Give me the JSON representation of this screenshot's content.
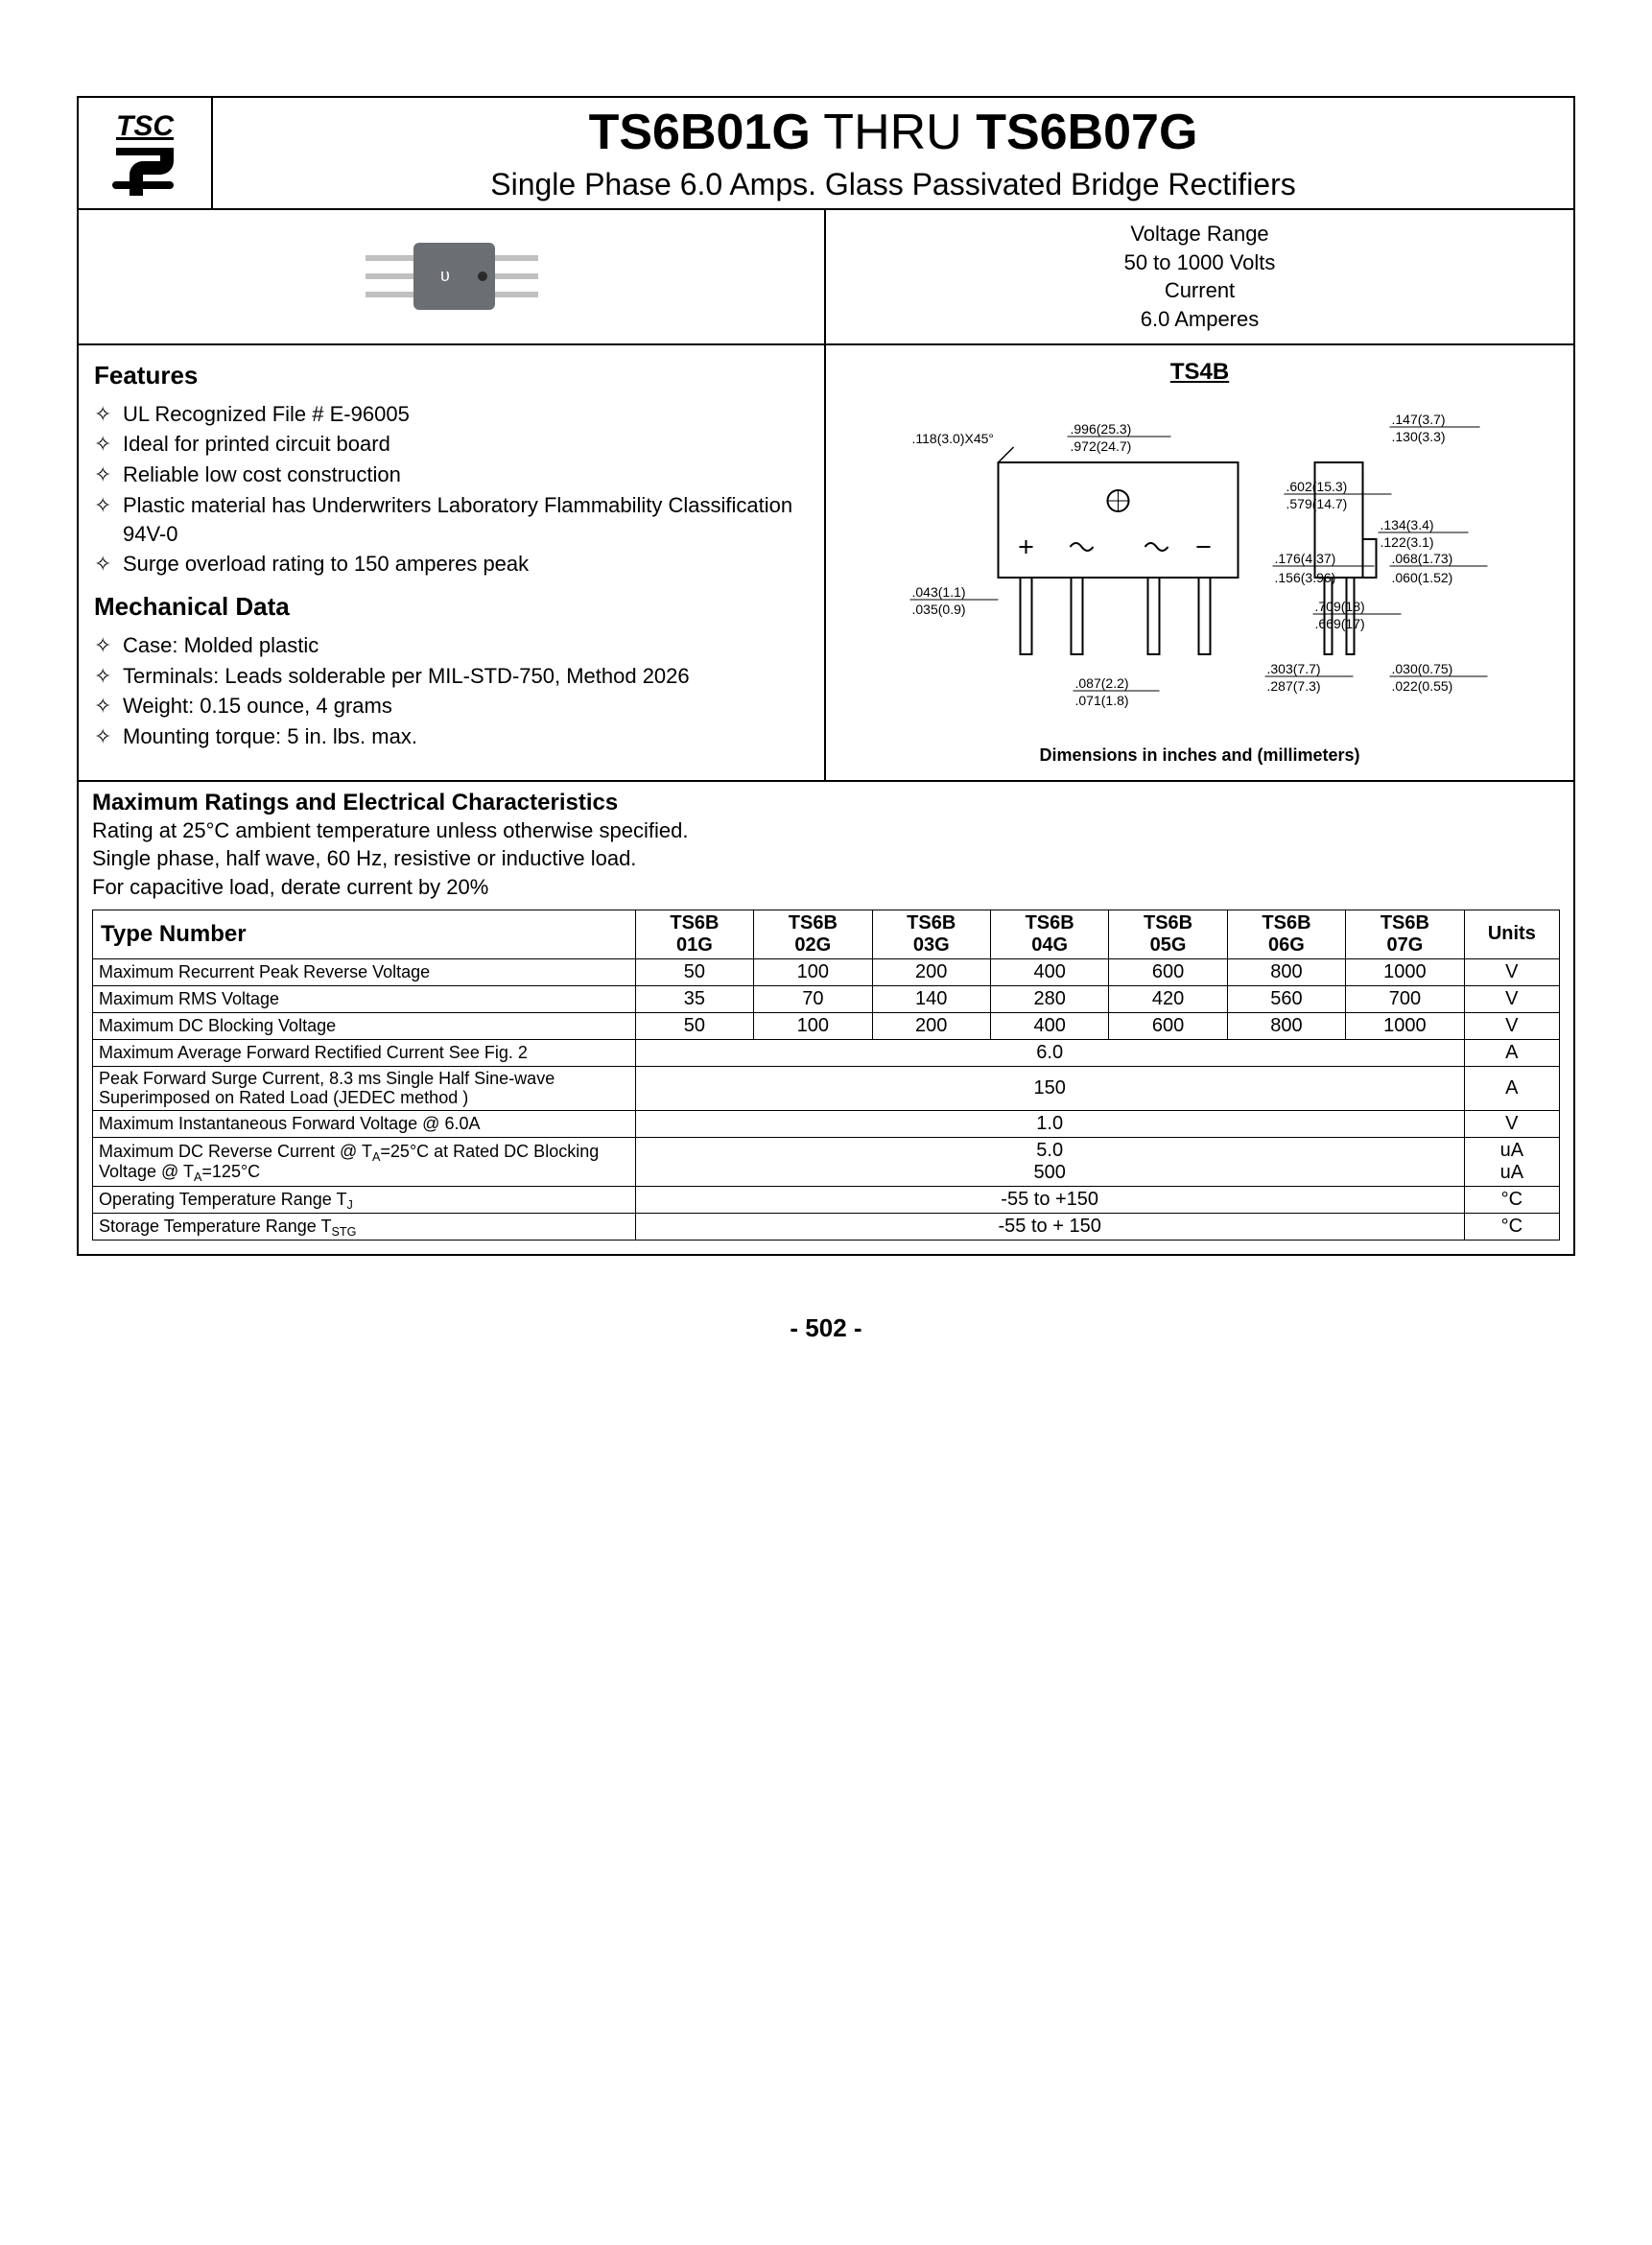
{
  "logo": {
    "text": "TSC"
  },
  "title": {
    "bold1": "TS6B01G",
    "mid": " THRU ",
    "bold2": "TS6B07G"
  },
  "subtitle": "Single Phase 6.0 Amps. Glass Passivated Bridge Rectifiers",
  "specs_summary": {
    "l1": "Voltage Range",
    "l2": "50 to 1000 Volts",
    "l3": "Current",
    "l4": "6.0 Amperes"
  },
  "package_label": "TS4B",
  "features_header": "Features",
  "features": [
    "UL Recognized File # E-96005",
    "Ideal for printed circuit board",
    "Reliable low cost construction",
    "Plastic material has Underwriters Laboratory Flammability Classification 94V-0",
    "Surge overload rating to 150 amperes peak"
  ],
  "mech_header": "Mechanical Data",
  "mech": [
    "Case: Molded plastic",
    "Terminals: Leads solderable per MIL-STD-750, Method 2026",
    "Weight: 0.15 ounce, 4 grams",
    "Mounting torque: 5 in. lbs. max."
  ],
  "dim_caption": "Dimensions in inches and (millimeters)",
  "dims": {
    "a": ".118(3.0)X45°",
    "b_top": ".996(25.3)",
    "b_bot": ".972(24.7)",
    "c_top": ".147(3.7)",
    "c_bot": ".130(3.3)",
    "d_top": ".602(15.3)",
    "d_bot": ".579(14.7)",
    "e_top": ".134(3.4)",
    "e_bot": ".122(3.1)",
    "f_top": ".176(4.37)",
    "f_bot": ".156(3.96)",
    "g_top": ".068(1.73)",
    "g_bot": ".060(1.52)",
    "h_top": ".043(1.1)",
    "h_bot": ".035(0.9)",
    "i_top": ".709(18)",
    "i_bot": ".669(17)",
    "j_top": ".303(7.7)",
    "j_bot": ".287(7.3)",
    "k_top": ".087(2.2)",
    "k_bot": ".071(1.8)",
    "l_top": ".030(0.75)",
    "l_bot": ".022(0.55)"
  },
  "ratings_header": "Maximum Ratings and Electrical Characteristics",
  "ratings_text": [
    "Rating at 25°C ambient temperature unless otherwise specified.",
    "Single phase, half wave, 60 Hz, resistive or inductive load.",
    "For capacitive load, derate current by 20%"
  ],
  "table": {
    "type_header": "Type Number",
    "units_header": "Units",
    "cols": [
      "TS6B 01G",
      "TS6B 02G",
      "TS6B 03G",
      "TS6B 04G",
      "TS6B 05G",
      "TS6B 06G",
      "TS6B 07G"
    ],
    "rows": [
      {
        "label": "Maximum Recurrent Peak Reverse Voltage",
        "vals": [
          "50",
          "100",
          "200",
          "400",
          "600",
          "800",
          "1000"
        ],
        "units": "V"
      },
      {
        "label": "Maximum RMS Voltage",
        "vals": [
          "35",
          "70",
          "140",
          "280",
          "420",
          "560",
          "700"
        ],
        "units": "V"
      },
      {
        "label": "Maximum DC Blocking Voltage",
        "vals": [
          "50",
          "100",
          "200",
          "400",
          "600",
          "800",
          "1000"
        ],
        "units": "V"
      },
      {
        "label": "Maximum Average Forward Rectified Current See Fig. 2",
        "span": "6.0",
        "units": "A"
      },
      {
        "label": "Peak Forward Surge Current, 8.3 ms Single Half Sine-wave Superimposed on Rated Load (JEDEC method )",
        "span": "150",
        "units": "A"
      },
      {
        "label": "Maximum Instantaneous Forward Voltage @ 6.0A",
        "span": "1.0",
        "units": "V"
      },
      {
        "label": "Maximum DC Reverse Current @ T<sub>A</sub>=25°C at Rated DC Blocking Voltage @ T<sub>A</sub>=125°C",
        "span_html": "5.0<br>500",
        "units_html": "uA<br>uA"
      },
      {
        "label": "Operating Temperature Range T<sub>J</sub>",
        "span": "-55 to +150",
        "units": "°C"
      },
      {
        "label": "Storage Temperature Range T<sub>STG</sub>",
        "span": "-55 to + 150",
        "units": "°C"
      }
    ]
  },
  "page_number": "- 502 -",
  "colors": {
    "body_fill": "#6b6f73",
    "lead": "#c0c0c0"
  }
}
